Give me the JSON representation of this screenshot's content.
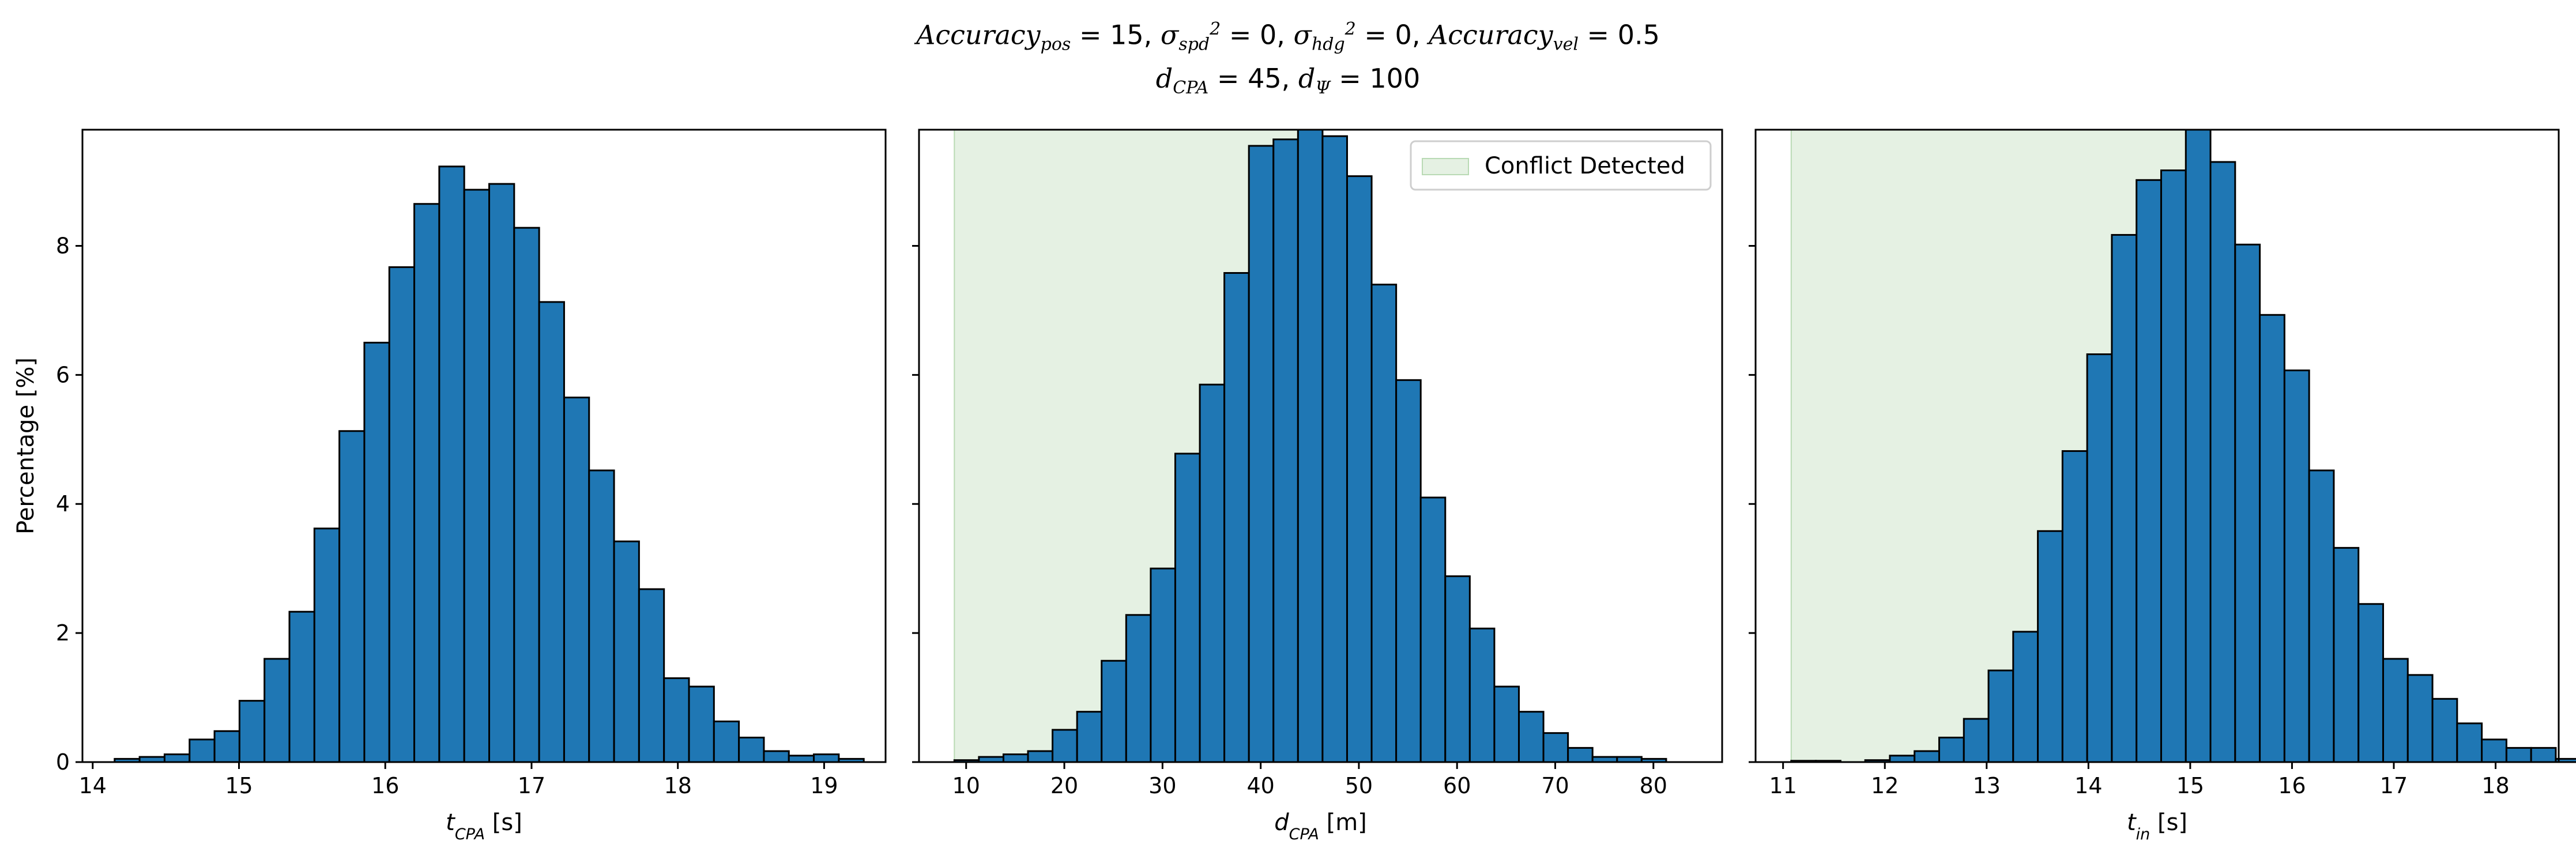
{
  "figure": {
    "title_line1": {
      "parts": [
        {
          "t": "Accuracy",
          "i": true
        },
        {
          "t": "pos",
          "sub": true
        },
        {
          "t": " = 15, "
        },
        {
          "t": "σ",
          "i": true
        },
        {
          "t": "spd",
          "sub": true
        },
        {
          "t": "2",
          "sup": true
        },
        {
          "t": " = 0, "
        },
        {
          "t": "σ",
          "i": true
        },
        {
          "t": "hdg",
          "sub": true
        },
        {
          "t": "2",
          "sup": true
        },
        {
          "t": " = 0, "
        },
        {
          "t": "Accuracy",
          "i": true
        },
        {
          "t": "vel",
          "sub": true
        },
        {
          "t": " = 0.5"
        }
      ]
    },
    "title_line2": {
      "parts": [
        {
          "t": "d",
          "i": true
        },
        {
          "t": "CPA",
          "sub": true
        },
        {
          "t": " = 45, "
        },
        {
          "t": "d",
          "i": true
        },
        {
          "t": "Ψ",
          "sub": true
        },
        {
          "t": " = 100"
        }
      ]
    },
    "shared_ylabel": "Percentage [%]"
  },
  "colors": {
    "bar_fill": "#1f77b4",
    "bar_edge": "#000000",
    "conflict_fill": "#e5f1e3",
    "conflict_edge": "#b9dab4"
  },
  "chart_data": [
    {
      "type": "bar",
      "histogram": true,
      "xlabel_parts": [
        {
          "t": "t",
          "i": true
        },
        {
          "t": "CPA",
          "sub": true
        },
        {
          "t": " [s]"
        }
      ],
      "xlim": [
        13.93,
        19.42
      ],
      "ylim": [
        0,
        9.8
      ],
      "xticks": [
        14,
        15,
        16,
        17,
        18,
        19
      ],
      "yticks": [
        0,
        2,
        4,
        6,
        8
      ],
      "bin_start": 14.15,
      "bin_width": 0.1707,
      "values": [
        0.05,
        0.08,
        0.12,
        0.35,
        0.48,
        0.95,
        1.6,
        2.33,
        3.62,
        5.13,
        6.5,
        7.67,
        8.65,
        9.23,
        8.87,
        8.96,
        8.28,
        7.13,
        5.65,
        4.52,
        3.42,
        2.68,
        1.3,
        1.17,
        0.63,
        0.38,
        0.17,
        0.1,
        0.12,
        0.05
      ],
      "shaded": null,
      "legend": null
    },
    {
      "type": "bar",
      "histogram": true,
      "xlabel_parts": [
        {
          "t": "d",
          "i": true
        },
        {
          "t": "CPA",
          "sub": true
        },
        {
          "t": " [m]"
        }
      ],
      "xlim": [
        5.2,
        87.0
      ],
      "ylim": [
        0,
        9.8
      ],
      "xticks": [
        10,
        20,
        30,
        40,
        50,
        60,
        70,
        80
      ],
      "yticks": [
        0,
        2,
        4,
        6,
        8
      ],
      "bin_start": 8.8,
      "bin_width": 2.5,
      "values": [
        0.03,
        0.08,
        0.12,
        0.17,
        0.5,
        0.78,
        1.57,
        2.28,
        3.0,
        4.78,
        5.85,
        7.58,
        9.55,
        9.65,
        9.85,
        9.7,
        9.08,
        7.4,
        5.92,
        4.1,
        2.88,
        2.07,
        1.17,
        0.78,
        0.45,
        0.22,
        0.08,
        0.08,
        0.05
      ],
      "shaded": {
        "from": 8.8,
        "to": 45
      },
      "legend": {
        "label": "Conflict Detected",
        "placement": "upper-right"
      }
    },
    {
      "type": "bar",
      "histogram": true,
      "xlabel_parts": [
        {
          "t": "t",
          "i": true
        },
        {
          "t": "in",
          "sub": true
        },
        {
          "t": " [s]"
        }
      ],
      "xlim": [
        10.73,
        18.62
      ],
      "ylim": [
        0,
        9.8
      ],
      "xticks": [
        11,
        12,
        13,
        14,
        15,
        16,
        17,
        18
      ],
      "yticks": [
        0,
        2,
        4,
        6,
        8
      ],
      "bin_start": 11.08,
      "bin_width": 0.2423,
      "values": [
        0.02,
        0.02,
        0.0,
        0.03,
        0.1,
        0.17,
        0.38,
        0.67,
        1.42,
        2.02,
        3.58,
        4.82,
        6.32,
        8.17,
        9.02,
        9.17,
        9.8,
        9.3,
        8.02,
        6.93,
        6.07,
        4.52,
        3.32,
        2.45,
        1.6,
        1.35,
        0.98,
        0.6,
        0.35,
        0.22,
        0.22,
        0.05,
        0.03
      ],
      "shaded": {
        "from": 11.08,
        "to": 15.05
      },
      "legend": null
    }
  ]
}
